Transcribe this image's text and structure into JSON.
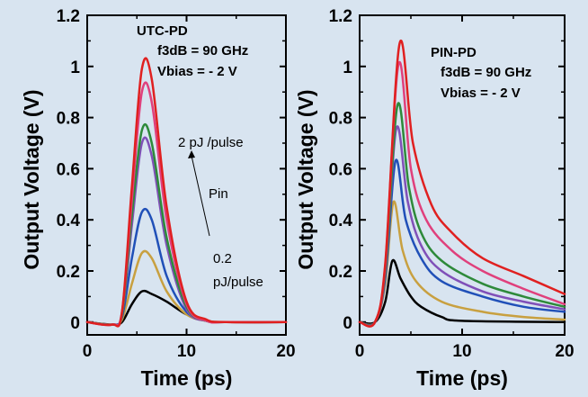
{
  "chart_data": [
    {
      "type": "line",
      "xlabel": "Time (ps)",
      "ylabel": "Output Voltage (V)",
      "xlim": [
        0,
        20
      ],
      "ylim": [
        -0.05,
        1.2
      ],
      "x_ticks": [
        "0",
        "10",
        "20"
      ],
      "y_ticks": [
        "0",
        "0.2",
        "0.4",
        "0.6",
        "0.8",
        "1",
        "1.2"
      ],
      "annotations": {
        "device": "UTC-PD",
        "f3db": "f3dB = 90 GHz",
        "vbias": "Vbias = - 2 V",
        "high_pulse": "2  pJ /pulse",
        "pin": "Pin",
        "low_pulse_1": "0.2",
        "low_pulse_2": "pJ/pulse"
      },
      "series": [
        {
          "color": "#000000",
          "values": [
            [
              0,
              0
            ],
            [
              2.5,
              -0.01
            ],
            [
              3.5,
              0.0
            ],
            [
              4.5,
              0.07
            ],
            [
              5.5,
              0.12
            ],
            [
              6.5,
              0.11
            ],
            [
              8,
              0.08
            ],
            [
              10,
              0.03
            ],
            [
              12,
              0.005
            ],
            [
              14,
              0
            ],
            [
              20,
              0
            ]
          ]
        },
        {
          "color": "#c8a040",
          "values": [
            [
              0,
              0
            ],
            [
              2.5,
              -0.01
            ],
            [
              3.5,
              0.01
            ],
            [
              4.5,
              0.15
            ],
            [
              5.5,
              0.27
            ],
            [
              6.5,
              0.25
            ],
            [
              8,
              0.12
            ],
            [
              10,
              0.03
            ],
            [
              12,
              0.005
            ],
            [
              14,
              0
            ],
            [
              20,
              0
            ]
          ]
        },
        {
          "color": "#2050b8",
          "values": [
            [
              0,
              0
            ],
            [
              2.5,
              -0.01
            ],
            [
              3.5,
              0.02
            ],
            [
              4.5,
              0.25
            ],
            [
              5.5,
              0.43
            ],
            [
              6.5,
              0.4
            ],
            [
              8,
              0.18
            ],
            [
              10,
              0.04
            ],
            [
              12,
              0.005
            ],
            [
              14,
              0
            ],
            [
              20,
              0
            ]
          ]
        },
        {
          "color": "#8050b8",
          "values": [
            [
              0,
              0
            ],
            [
              2.5,
              -0.01
            ],
            [
              3.5,
              0.03
            ],
            [
              4.5,
              0.38
            ],
            [
              5.5,
              0.7
            ],
            [
              6.5,
              0.65
            ],
            [
              8,
              0.3
            ],
            [
              10,
              0.05
            ],
            [
              12,
              0.005
            ],
            [
              14,
              0
            ],
            [
              20,
              0
            ]
          ]
        },
        {
          "color": "#2e8a3a",
          "values": [
            [
              0,
              0
            ],
            [
              2.5,
              -0.01
            ],
            [
              3.5,
              0.03
            ],
            [
              4.5,
              0.42
            ],
            [
              5.5,
              0.75
            ],
            [
              6.5,
              0.7
            ],
            [
              8,
              0.33
            ],
            [
              10,
              0.06
            ],
            [
              12,
              0.005
            ],
            [
              14,
              0
            ],
            [
              20,
              0
            ]
          ]
        },
        {
          "color": "#e0407c",
          "values": [
            [
              0,
              0
            ],
            [
              2.5,
              -0.01
            ],
            [
              3.5,
              0.04
            ],
            [
              4.5,
              0.48
            ],
            [
              5.5,
              0.9
            ],
            [
              6.5,
              0.86
            ],
            [
              8,
              0.4
            ],
            [
              10,
              0.07
            ],
            [
              12,
              0.005
            ],
            [
              14,
              0
            ],
            [
              20,
              0
            ]
          ]
        },
        {
          "color": "#e02020",
          "values": [
            [
              0,
              0
            ],
            [
              2.5,
              -0.01
            ],
            [
              3.5,
              0.04
            ],
            [
              4.5,
              0.53
            ],
            [
              5.5,
              0.99
            ],
            [
              6.5,
              0.95
            ],
            [
              8,
              0.45
            ],
            [
              10,
              0.08
            ],
            [
              12,
              0.01
            ],
            [
              14,
              0
            ],
            [
              20,
              0
            ]
          ]
        }
      ]
    },
    {
      "type": "line",
      "xlabel": "Time (ps)",
      "ylabel": "Output Voltage (V)",
      "xlim": [
        0,
        20
      ],
      "ylim": [
        -0.05,
        1.2
      ],
      "x_ticks": [
        "0",
        "10",
        "20"
      ],
      "y_ticks": [
        "0",
        "0.2",
        "0.4",
        "0.6",
        "0.8",
        "1",
        "1.2"
      ],
      "annotations": {
        "device": "PIN-PD",
        "f3db": "f3dB = 90 GHz",
        "vbias": "Vbias = - 2 V"
      },
      "series": [
        {
          "color": "#000000",
          "values": [
            [
              0,
              0
            ],
            [
              1.5,
              0
            ],
            [
              2.5,
              0.08
            ],
            [
              3.2,
              0.24
            ],
            [
              4,
              0.17
            ],
            [
              5,
              0.1
            ],
            [
              6,
              0.06
            ],
            [
              8,
              0.02
            ],
            [
              10,
              0.005
            ],
            [
              20,
              0
            ]
          ]
        },
        {
          "color": "#c8a040",
          "values": [
            [
              0,
              0
            ],
            [
              1.5,
              0
            ],
            [
              2.5,
              0.15
            ],
            [
              3.3,
              0.47
            ],
            [
              4.2,
              0.28
            ],
            [
              5.5,
              0.16
            ],
            [
              8,
              0.08
            ],
            [
              12,
              0.04
            ],
            [
              16,
              0.02
            ],
            [
              20,
              0.01
            ]
          ]
        },
        {
          "color": "#2050b8",
          "values": [
            [
              0,
              0
            ],
            [
              1.5,
              0
            ],
            [
              2.5,
              0.17
            ],
            [
              3.5,
              0.63
            ],
            [
              4.5,
              0.4
            ],
            [
              6,
              0.25
            ],
            [
              8,
              0.16
            ],
            [
              12,
              0.1
            ],
            [
              16,
              0.06
            ],
            [
              20,
              0.04
            ]
          ]
        },
        {
          "color": "#8050b8",
          "values": [
            [
              0,
              0
            ],
            [
              1.5,
              0
            ],
            [
              2.5,
              0.19
            ],
            [
              3.6,
              0.76
            ],
            [
              4.7,
              0.47
            ],
            [
              6,
              0.3
            ],
            [
              8,
              0.2
            ],
            [
              12,
              0.12
            ],
            [
              16,
              0.08
            ],
            [
              20,
              0.05
            ]
          ]
        },
        {
          "color": "#2e8a3a",
          "values": [
            [
              0,
              0
            ],
            [
              1.5,
              0
            ],
            [
              2.5,
              0.2
            ],
            [
              3.7,
              0.85
            ],
            [
              4.8,
              0.53
            ],
            [
              6,
              0.35
            ],
            [
              8,
              0.24
            ],
            [
              12,
              0.15
            ],
            [
              16,
              0.1
            ],
            [
              20,
              0.06
            ]
          ]
        },
        {
          "color": "#e0407c",
          "values": [
            [
              0,
              0
            ],
            [
              1.5,
              0
            ],
            [
              2.5,
              0.22
            ],
            [
              3.8,
              1.01
            ],
            [
              5,
              0.6
            ],
            [
              6.5,
              0.4
            ],
            [
              9,
              0.28
            ],
            [
              12,
              0.2
            ],
            [
              16,
              0.13
            ],
            [
              20,
              0.07
            ]
          ]
        },
        {
          "color": "#e02020",
          "values": [
            [
              0,
              0
            ],
            [
              1.5,
              0
            ],
            [
              2.5,
              0.23
            ],
            [
              3.9,
              1.09
            ],
            [
              5.2,
              0.7
            ],
            [
              7,
              0.46
            ],
            [
              9,
              0.35
            ],
            [
              12,
              0.25
            ],
            [
              16,
              0.18
            ],
            [
              20,
              0.11
            ]
          ]
        }
      ]
    }
  ]
}
